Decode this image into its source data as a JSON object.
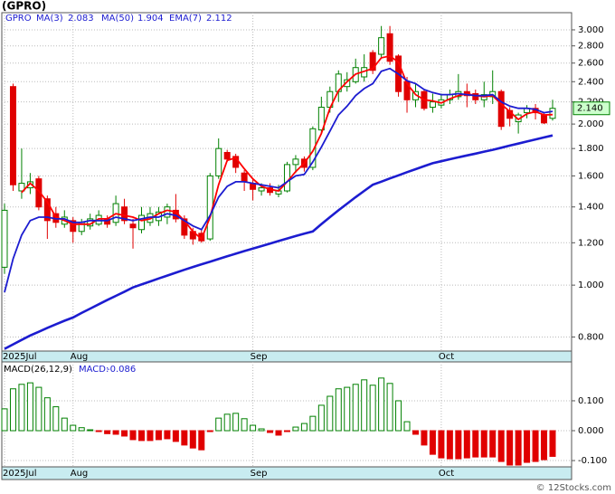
{
  "chart_data": [
    {
      "type": "candlestick",
      "title": "(GPRO)",
      "symbol": "GPRO",
      "log_scale": true,
      "grid": true,
      "categories": [
        "2025Jul",
        null,
        null,
        null,
        null,
        null,
        null,
        null,
        "Aug",
        null,
        null,
        null,
        null,
        null,
        null,
        null,
        null,
        null,
        null,
        null,
        null,
        null,
        null,
        null,
        null,
        null,
        null,
        null,
        null,
        "Sep",
        null,
        null,
        null,
        null,
        null,
        null,
        null,
        null,
        null,
        null,
        null,
        null,
        null,
        null,
        null,
        null,
        null,
        null,
        null,
        null,
        null,
        "Oct",
        null,
        null,
        null,
        null,
        null,
        null,
        null,
        null,
        null,
        null,
        null,
        null,
        null
      ],
      "open": [
        1.08,
        2.35,
        1.5,
        1.52,
        1.58,
        1.45,
        1.36,
        1.3,
        1.32,
        1.26,
        1.29,
        1.3,
        1.33,
        1.31,
        1.4,
        1.3,
        1.27,
        1.31,
        1.32,
        1.34,
        1.38,
        1.33,
        1.26,
        1.25,
        1.22,
        1.6,
        1.77,
        1.74,
        1.62,
        1.55,
        1.5,
        1.52,
        1.48,
        1.5,
        1.68,
        1.72,
        1.66,
        1.95,
        2.15,
        2.3,
        2.35,
        2.4,
        2.45,
        2.72,
        2.7,
        2.95,
        2.68,
        2.4,
        2.22,
        2.3,
        2.15,
        2.17,
        2.22,
        2.25,
        2.3,
        2.28,
        2.22,
        2.25,
        2.3,
        2.12,
        2.02,
        2.1,
        2.14,
        2.08,
        2.05
      ],
      "high": [
        1.42,
        2.38,
        1.8,
        1.62,
        1.6,
        1.47,
        1.4,
        1.38,
        1.34,
        1.33,
        1.36,
        1.38,
        1.35,
        1.47,
        1.45,
        1.33,
        1.4,
        1.4,
        1.4,
        1.42,
        1.48,
        1.35,
        1.28,
        1.27,
        1.62,
        1.88,
        1.79,
        1.76,
        1.64,
        1.58,
        1.55,
        1.55,
        1.54,
        1.7,
        1.75,
        1.74,
        1.98,
        2.25,
        2.35,
        2.52,
        2.5,
        2.65,
        2.7,
        2.75,
        3.05,
        3.05,
        2.7,
        2.45,
        2.38,
        2.32,
        2.28,
        2.28,
        2.32,
        2.48,
        2.38,
        2.32,
        2.4,
        2.52,
        2.32,
        2.15,
        2.1,
        2.17,
        2.18,
        2.1,
        2.22
      ],
      "low": [
        1.05,
        1.5,
        1.45,
        1.48,
        1.38,
        1.22,
        1.28,
        1.28,
        1.2,
        1.24,
        1.27,
        1.29,
        1.28,
        1.29,
        1.3,
        1.17,
        1.25,
        1.29,
        1.29,
        1.3,
        1.31,
        1.22,
        1.19,
        1.2,
        1.21,
        1.58,
        1.7,
        1.62,
        1.5,
        1.44,
        1.47,
        1.47,
        1.46,
        1.49,
        1.62,
        1.63,
        1.64,
        1.92,
        2.1,
        2.2,
        2.3,
        2.38,
        2.4,
        2.48,
        2.65,
        2.58,
        2.25,
        2.1,
        2.15,
        2.12,
        2.1,
        2.14,
        2.18,
        2.22,
        2.15,
        2.18,
        2.15,
        2.18,
        1.95,
        1.98,
        1.92,
        2.05,
        2.04,
        2.0,
        2.03
      ],
      "close": [
        1.38,
        1.54,
        1.55,
        1.56,
        1.4,
        1.32,
        1.31,
        1.34,
        1.26,
        1.31,
        1.33,
        1.35,
        1.3,
        1.42,
        1.32,
        1.28,
        1.35,
        1.36,
        1.37,
        1.4,
        1.33,
        1.24,
        1.22,
        1.21,
        1.6,
        1.8,
        1.72,
        1.66,
        1.56,
        1.51,
        1.52,
        1.49,
        1.5,
        1.68,
        1.72,
        1.66,
        1.96,
        2.15,
        2.3,
        2.48,
        2.42,
        2.55,
        2.55,
        2.52,
        2.9,
        2.62,
        2.3,
        2.22,
        2.3,
        2.14,
        2.2,
        2.22,
        2.27,
        2.3,
        2.26,
        2.22,
        2.27,
        2.3,
        1.98,
        2.05,
        2.08,
        2.14,
        2.1,
        2.01,
        2.14
      ],
      "close_label": "2.140",
      "up_color": "#008000",
      "down_color": "#e00000",
      "series": [
        {
          "name": "MA(3)",
          "color": "#ff0000",
          "values": [
            null,
            null,
            1.49,
            1.55,
            1.5,
            1.43,
            1.34,
            1.32,
            1.3,
            1.3,
            1.3,
            1.33,
            1.33,
            1.36,
            1.35,
            1.34,
            1.32,
            1.33,
            1.36,
            1.38,
            1.37,
            1.32,
            1.26,
            1.22,
            1.34,
            1.54,
            1.71,
            1.73,
            1.65,
            1.58,
            1.53,
            1.51,
            1.5,
            1.56,
            1.63,
            1.69,
            1.78,
            1.92,
            2.14,
            2.31,
            2.4,
            2.48,
            2.51,
            2.54,
            2.66,
            2.68,
            2.61,
            2.38,
            2.27,
            2.22,
            2.21,
            2.19,
            2.23,
            2.26,
            2.28,
            2.26,
            2.25,
            2.26,
            2.18,
            2.11,
            2.04,
            2.09,
            2.11,
            2.08,
            2.083
          ]
        },
        {
          "name": "MA(50)",
          "color": "#1c1cd0",
          "values": [
            0.76,
            0.775,
            0.79,
            0.805,
            0.818,
            0.832,
            0.845,
            0.858,
            0.87,
            0.887,
            0.904,
            0.921,
            0.938,
            0.955,
            0.972,
            0.99,
            1.003,
            1.016,
            1.029,
            1.042,
            1.055,
            1.068,
            1.081,
            1.094,
            1.106,
            1.119,
            1.132,
            1.145,
            1.158,
            1.17,
            1.183,
            1.196,
            1.209,
            1.222,
            1.235,
            1.248,
            1.26,
            1.3,
            1.34,
            1.38,
            1.42,
            1.46,
            1.5,
            1.54,
            1.561,
            1.583,
            1.604,
            1.626,
            1.647,
            1.669,
            1.69,
            1.704,
            1.719,
            1.733,
            1.747,
            1.761,
            1.776,
            1.79,
            1.806,
            1.823,
            1.839,
            1.855,
            1.872,
            1.888,
            1.904
          ]
        },
        {
          "name": "EMA(7)",
          "color": "#1c1cd0",
          "values": [
            0.97,
            1.12,
            1.24,
            1.32,
            1.34,
            1.34,
            1.33,
            1.33,
            1.31,
            1.31,
            1.32,
            1.32,
            1.32,
            1.34,
            1.33,
            1.32,
            1.33,
            1.34,
            1.34,
            1.36,
            1.35,
            1.32,
            1.29,
            1.27,
            1.35,
            1.46,
            1.53,
            1.56,
            1.56,
            1.55,
            1.54,
            1.53,
            1.52,
            1.56,
            1.6,
            1.61,
            1.7,
            1.81,
            1.94,
            2.08,
            2.16,
            2.26,
            2.33,
            2.38,
            2.51,
            2.54,
            2.48,
            2.41,
            2.38,
            2.32,
            2.29,
            2.27,
            2.27,
            2.28,
            2.27,
            2.26,
            2.26,
            2.27,
            2.2,
            2.16,
            2.14,
            2.14,
            2.13,
            2.1,
            2.112
          ]
        }
      ],
      "ylim": [
        0.753,
        3.23
      ],
      "yticks": [
        {
          "value": 0.8,
          "label": "0.800"
        },
        {
          "value": 1.0,
          "label": "1.000"
        },
        {
          "value": 1.2,
          "label": "1.200"
        },
        {
          "value": 1.4,
          "label": "1.400"
        },
        {
          "value": 1.6,
          "label": "1.600"
        },
        {
          "value": 1.8,
          "label": "1.800"
        },
        {
          "value": 2.0,
          "label": "2.000"
        },
        {
          "value": 2.2,
          "label": "2.200"
        },
        {
          "value": 2.4,
          "label": "2.400"
        },
        {
          "value": 2.6,
          "label": "2.600"
        },
        {
          "value": 2.8,
          "label": "2.800"
        },
        {
          "value": 3.0,
          "label": "3.000"
        }
      ]
    },
    {
      "type": "histogram",
      "title": "MACD(26,12,9)",
      "value_name": "MACD:",
      "values": [
        0.073,
        0.14,
        0.155,
        0.16,
        0.145,
        0.11,
        0.08,
        0.042,
        0.018,
        0.01,
        0.003,
        -0.003,
        -0.01,
        -0.012,
        -0.018,
        -0.03,
        -0.033,
        -0.033,
        -0.03,
        -0.027,
        -0.036,
        -0.048,
        -0.058,
        -0.064,
        -0.003,
        0.042,
        0.055,
        0.058,
        0.04,
        0.018,
        0.006,
        -0.006,
        -0.015,
        -0.003,
        0.012,
        0.024,
        0.048,
        0.085,
        0.115,
        0.14,
        0.145,
        0.155,
        0.17,
        0.152,
        0.176,
        0.158,
        0.1,
        0.03,
        -0.012,
        -0.048,
        -0.079,
        -0.091,
        -0.094,
        -0.094,
        -0.091,
        -0.088,
        -0.088,
        -0.088,
        -0.103,
        -0.115,
        -0.115,
        -0.106,
        -0.103,
        -0.097,
        -0.086
      ],
      "up_color": "#008000",
      "down_color": "#e00000",
      "ylim": [
        -0.121,
        0.23
      ],
      "yticks": [
        {
          "value": -0.1,
          "label": "-0.100"
        },
        {
          "value": 0,
          "label": "0.000"
        },
        {
          "value": 0.1,
          "label": "0.100"
        }
      ]
    }
  ],
  "footer": "© 12Stocks.com"
}
